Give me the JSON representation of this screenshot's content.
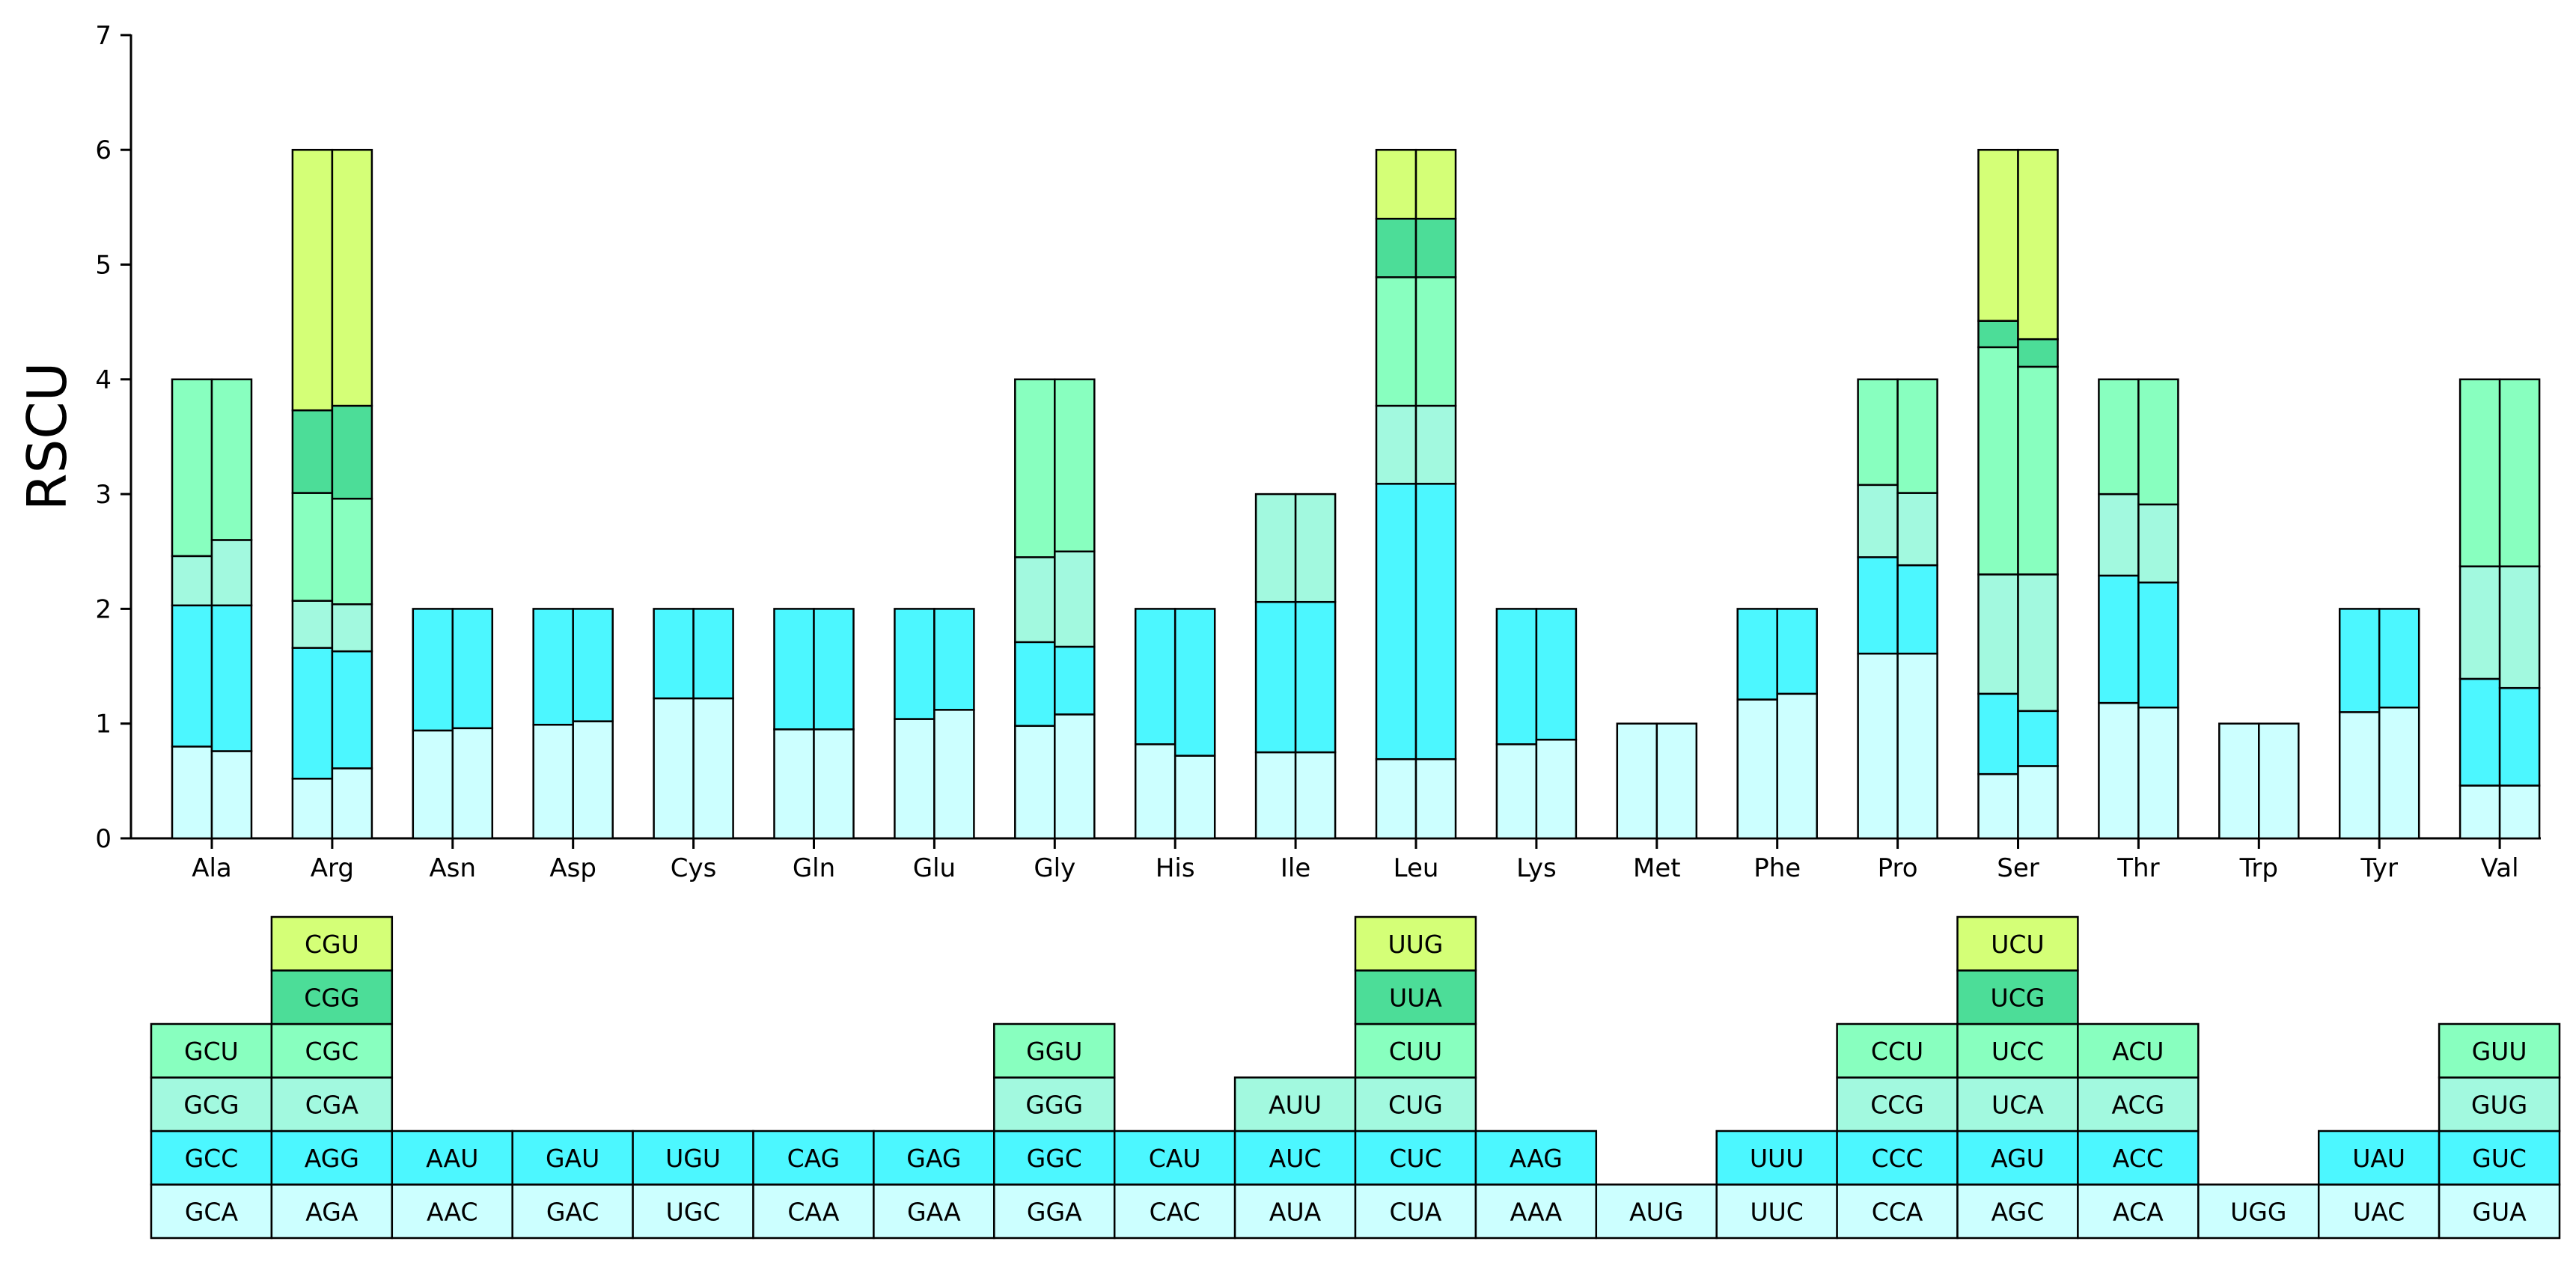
{
  "chart_data": {
    "type": "bar",
    "subtype": "stacked-paired",
    "title": "",
    "xlabel": "",
    "ylabel": "RSCU",
    "ylim": [
      0,
      7
    ],
    "yticks": [
      "0",
      "1",
      "2",
      "3",
      "4",
      "5",
      "6",
      "7"
    ],
    "grid": false,
    "colors": [
      "#ccffff",
      "#4cf7ff",
      "#a2f9df",
      "#88ffbf",
      "#4cdd98",
      "#d4ff77"
    ],
    "categories": [
      {
        "name": "Ala",
        "codons": [
          "GCA",
          "GCC",
          "GCG",
          "GCU"
        ],
        "bar1": [
          0.8,
          1.23,
          0.43,
          1.54
        ],
        "bar2": [
          0.76,
          1.27,
          0.57,
          1.4
        ]
      },
      {
        "name": "Arg",
        "codons": [
          "AGA",
          "AGG",
          "CGA",
          "CGC",
          "CGG",
          "CGU"
        ],
        "bar1": [
          0.52,
          1.14,
          0.41,
          0.94,
          0.72,
          2.27
        ],
        "bar2": [
          0.61,
          1.02,
          0.41,
          0.92,
          0.81,
          2.23
        ]
      },
      {
        "name": "Asn",
        "codons": [
          "AAC",
          "AAU"
        ],
        "bar1": [
          0.94,
          1.06
        ],
        "bar2": [
          0.96,
          1.04
        ]
      },
      {
        "name": "Asp",
        "codons": [
          "GAC",
          "GAU"
        ],
        "bar1": [
          0.99,
          1.01
        ],
        "bar2": [
          1.02,
          0.98
        ]
      },
      {
        "name": "Cys",
        "codons": [
          "UGC",
          "UGU"
        ],
        "bar1": [
          1.22,
          0.78
        ],
        "bar2": [
          1.22,
          0.78
        ]
      },
      {
        "name": "Gln",
        "codons": [
          "CAA",
          "CAG"
        ],
        "bar1": [
          0.95,
          1.05
        ],
        "bar2": [
          0.95,
          1.05
        ]
      },
      {
        "name": "Glu",
        "codons": [
          "GAA",
          "GAG"
        ],
        "bar1": [
          1.04,
          0.96
        ],
        "bar2": [
          1.12,
          0.88
        ]
      },
      {
        "name": "Gly",
        "codons": [
          "GGA",
          "GGC",
          "GGG",
          "GGU"
        ],
        "bar1": [
          0.98,
          0.73,
          0.74,
          1.55
        ],
        "bar2": [
          1.08,
          0.59,
          0.83,
          1.5
        ]
      },
      {
        "name": "His",
        "codons": [
          "CAC",
          "CAU"
        ],
        "bar1": [
          0.82,
          1.18
        ],
        "bar2": [
          0.72,
          1.28
        ]
      },
      {
        "name": "Ile",
        "codons": [
          "AUA",
          "AUC",
          "AUU"
        ],
        "bar1": [
          0.75,
          1.31,
          0.94
        ],
        "bar2": [
          0.75,
          1.31,
          0.94
        ]
      },
      {
        "name": "Leu",
        "codons": [
          "CUA",
          "CUC",
          "CUG",
          "CUU",
          "UUA",
          "UUG"
        ],
        "bar1": [
          0.69,
          2.4,
          0.68,
          1.12,
          0.51,
          0.6
        ],
        "bar2": [
          0.69,
          2.4,
          0.68,
          1.12,
          0.51,
          0.6
        ]
      },
      {
        "name": "Lys",
        "codons": [
          "AAA",
          "AAG"
        ],
        "bar1": [
          0.82,
          1.18
        ],
        "bar2": [
          0.86,
          1.14
        ]
      },
      {
        "name": "Met",
        "codons": [
          "AUG"
        ],
        "bar1": [
          1.0
        ],
        "bar2": [
          1.0
        ]
      },
      {
        "name": "Phe",
        "codons": [
          "UUC",
          "UUU"
        ],
        "bar1": [
          1.21,
          0.79
        ],
        "bar2": [
          1.26,
          0.74
        ]
      },
      {
        "name": "Pro",
        "codons": [
          "CCA",
          "CCC",
          "CCG",
          "CCU"
        ],
        "bar1": [
          1.61,
          0.84,
          0.63,
          0.92
        ],
        "bar2": [
          1.61,
          0.77,
          0.63,
          0.99
        ]
      },
      {
        "name": "Ser",
        "codons": [
          "AGC",
          "AGU",
          "UCA",
          "UCC",
          "UCG",
          "UCU"
        ],
        "bar1": [
          0.56,
          0.7,
          1.04,
          1.98,
          0.23,
          1.49
        ],
        "bar2": [
          0.63,
          0.48,
          1.19,
          1.81,
          0.24,
          1.65
        ]
      },
      {
        "name": "Thr",
        "codons": [
          "ACA",
          "ACC",
          "ACG",
          "ACU"
        ],
        "bar1": [
          1.18,
          1.11,
          0.71,
          1.0
        ],
        "bar2": [
          1.14,
          1.09,
          0.68,
          1.09
        ]
      },
      {
        "name": "Trp",
        "codons": [
          "UGG"
        ],
        "bar1": [
          1.0
        ],
        "bar2": [
          1.0
        ]
      },
      {
        "name": "Tyr",
        "codons": [
          "UAC",
          "UAU"
        ],
        "bar1": [
          1.1,
          0.9
        ],
        "bar2": [
          1.14,
          0.86
        ]
      },
      {
        "name": "Val",
        "codons": [
          "GUA",
          "GUC",
          "GUG",
          "GUU"
        ],
        "bar1": [
          0.46,
          0.93,
          0.98,
          1.63
        ],
        "bar2": [
          0.46,
          0.85,
          1.06,
          1.63
        ]
      }
    ]
  }
}
